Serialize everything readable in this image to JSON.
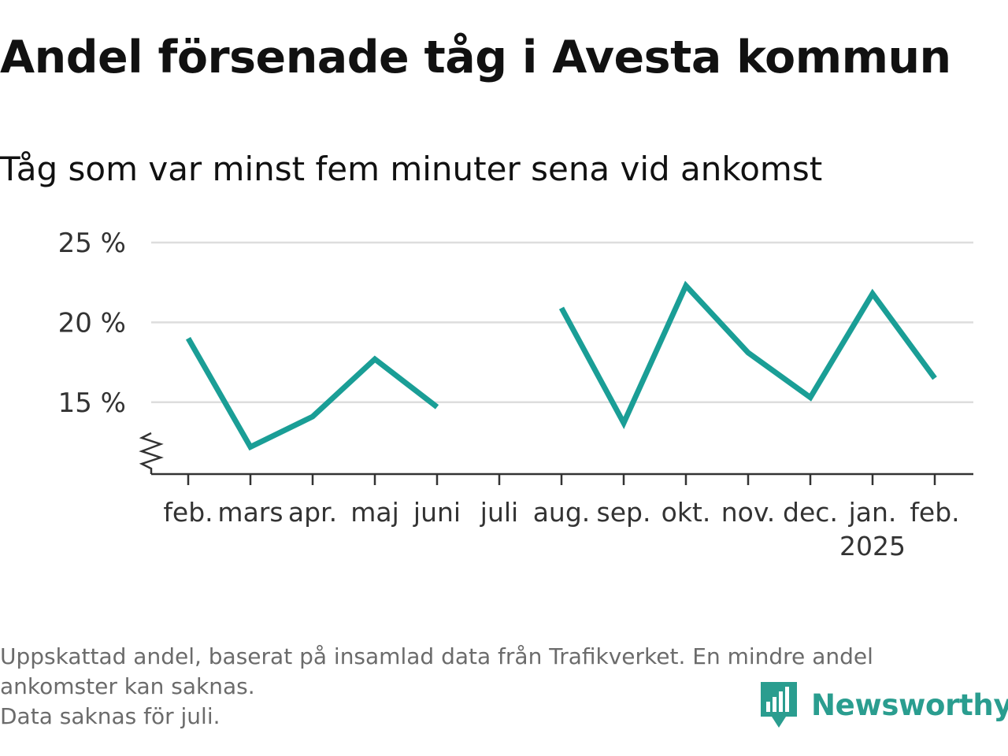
{
  "header": {
    "title": "Andel försenade tåg i Avesta kommun",
    "subtitle": "Tåg som var minst fem minuter sena vid ankomst"
  },
  "chart_data": {
    "type": "line",
    "title": "Andel försenade tåg i Avesta kommun",
    "subtitle": "Tåg som var minst fem minuter sena vid ankomst",
    "xlabel": "",
    "ylabel": "",
    "categories": [
      "feb.",
      "mars",
      "apr.",
      "maj",
      "juni",
      "juli",
      "aug.",
      "sep.",
      "okt.",
      "nov.",
      "dec.",
      "jan.",
      "feb."
    ],
    "year_labels": [
      "",
      "",
      "",
      "",
      "",
      "",
      "",
      "",
      "",
      "",
      "",
      "2025",
      ""
    ],
    "series": [
      {
        "values": [
          19.0,
          12.2,
          14.1,
          17.7,
          14.7,
          null,
          20.9,
          13.7,
          22.3,
          18.1,
          15.3,
          21.8,
          16.5
        ]
      }
    ],
    "yticks": [
      15,
      20,
      25
    ],
    "ytick_labels": [
      "15 %",
      "20 %",
      "25 %"
    ],
    "ylim": [
      10.5,
      25
    ],
    "axis_break": true,
    "grid": true,
    "legend": "none",
    "colors": {
      "line": "#1a9e96",
      "grid": "#dddddd",
      "axis": "#333333"
    }
  },
  "footer": {
    "note_lines": [
      "Uppskattad andel, baserat på insamlad data från Trafikverket. En mindre andel",
      "ankomster kan saknas.",
      "Data saknas för juli."
    ],
    "brand": "Newsworthy",
    "brand_icon": "newsworthy-logo-icon",
    "brand_color": "#2a9d8f"
  }
}
